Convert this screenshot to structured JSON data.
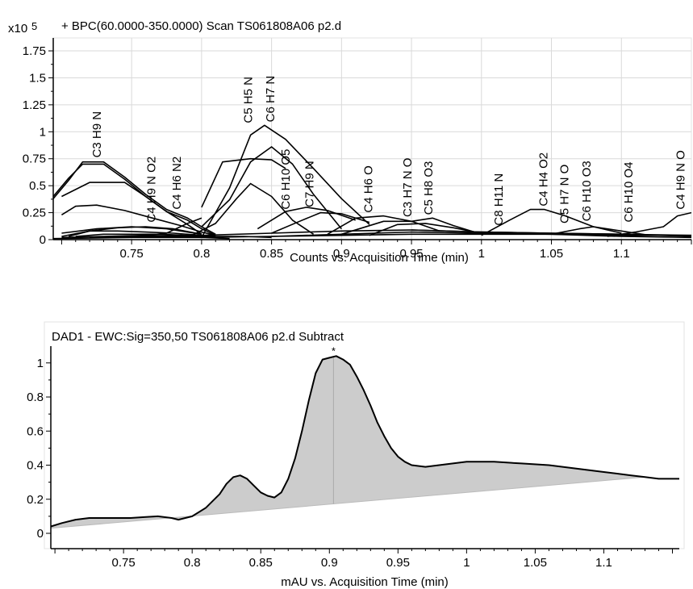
{
  "chart_data": [
    {
      "type": "line",
      "title": "+ BPC(60.0000-350.0000) Scan TS061808A06 p2.d",
      "multiplier": "x10",
      "multiplier_exp": "5",
      "xlabel": "Counts vs. Acquisition Time (min)",
      "xlim": [
        0.694,
        1.15
      ],
      "ylim": [
        0,
        1.87
      ],
      "xticks": [
        "0.75",
        "0.8",
        "0.85",
        "0.9",
        "0.95",
        "1",
        "1.05",
        "1.1"
      ],
      "xtick_values": [
        0.75,
        0.8,
        0.85,
        0.9,
        0.95,
        1.0,
        1.05,
        1.1
      ],
      "yticks": [
        "0",
        "0.25",
        "0.5",
        "0.75",
        "1",
        "1.25",
        "1.5",
        "1.75"
      ],
      "ytick_values": [
        0,
        0.25,
        0.5,
        0.75,
        1.0,
        1.25,
        1.5,
        1.75
      ],
      "grid": true,
      "series": [
        {
          "x": [
            0.694,
            0.705,
            0.715,
            0.73,
            0.745,
            0.76,
            0.775,
            0.79,
            0.8,
            0.81
          ],
          "y": [
            0.38,
            0.55,
            0.72,
            0.72,
            0.58,
            0.42,
            0.28,
            0.2,
            0.12,
            0.05
          ]
        },
        {
          "x": [
            0.694,
            0.705,
            0.715,
            0.73,
            0.745,
            0.76,
            0.775,
            0.79,
            0.8,
            0.81
          ],
          "y": [
            0.4,
            0.57,
            0.7,
            0.7,
            0.56,
            0.4,
            0.26,
            0.18,
            0.1,
            0.04
          ]
        },
        {
          "x": [
            0.7,
            0.72,
            0.74,
            0.76,
            0.78,
            0.8,
            0.81
          ],
          "y": [
            0.03,
            0.08,
            0.08,
            0.07,
            0.06,
            0.04,
            0.03
          ]
        },
        {
          "x": [
            0.7,
            0.71,
            0.725,
            0.745,
            0.765,
            0.785,
            0.8,
            0.81
          ],
          "y": [
            0.23,
            0.31,
            0.32,
            0.27,
            0.2,
            0.13,
            0.07,
            0.04
          ]
        },
        {
          "x": [
            0.71,
            0.73,
            0.75,
            0.77,
            0.79,
            0.81
          ],
          "y": [
            0.03,
            0.05,
            0.05,
            0.05,
            0.04,
            0.03
          ]
        },
        {
          "x": [
            0.7,
            0.73,
            0.76,
            0.8,
            0.83,
            0.85
          ],
          "y": [
            0.02,
            0.03,
            0.04,
            0.03,
            0.03,
            0.02
          ]
        },
        {
          "x": [
            0.72,
            0.75,
            0.78,
            0.8,
            0.82
          ],
          "y": [
            0.02,
            0.03,
            0.03,
            0.02,
            0.01
          ]
        },
        {
          "x": [
            0.705,
            0.72,
            0.74,
            0.76,
            0.78,
            0.8
          ],
          "y": [
            0.03,
            0.08,
            0.11,
            0.12,
            0.1,
            0.05
          ]
        },
        {
          "x": [
            0.7,
            0.725,
            0.75,
            0.775,
            0.8
          ],
          "y": [
            0.06,
            0.1,
            0.12,
            0.1,
            0.05
          ]
        },
        {
          "x": [
            0.7,
            0.72,
            0.745,
            0.76,
            0.775,
            0.79,
            0.8
          ],
          "y": [
            0.4,
            0.53,
            0.53,
            0.4,
            0.26,
            0.14,
            0.05
          ]
        },
        {
          "x": [
            0.73,
            0.76,
            0.775,
            0.79,
            0.8
          ],
          "y": [
            0.02,
            0.04,
            0.06,
            0.15,
            0.2
          ]
        },
        {
          "x": [
            0.8,
            0.82,
            0.835,
            0.845,
            0.86,
            0.88,
            0.9,
            0.92
          ],
          "y": [
            0.02,
            0.48,
            0.97,
            1.06,
            0.93,
            0.66,
            0.38,
            0.14
          ]
        },
        {
          "x": [
            0.8,
            0.82,
            0.835,
            0.85,
            0.865,
            0.88,
            0.9
          ],
          "y": [
            0.12,
            0.37,
            0.72,
            0.86,
            0.7,
            0.42,
            0.1
          ]
        },
        {
          "x": [
            0.8,
            0.815,
            0.835,
            0.85,
            0.86
          ],
          "y": [
            0.3,
            0.72,
            0.75,
            0.74,
            0.66
          ]
        },
        {
          "x": [
            0.79,
            0.81,
            0.825,
            0.835,
            0.85,
            0.865,
            0.88
          ],
          "y": [
            0.02,
            0.15,
            0.38,
            0.52,
            0.4,
            0.18,
            0.05
          ]
        },
        {
          "x": [
            0.84,
            0.86,
            0.875,
            0.89,
            0.91
          ],
          "y": [
            0.1,
            0.26,
            0.3,
            0.27,
            0.18
          ]
        },
        {
          "x": [
            0.85,
            0.87,
            0.885,
            0.9,
            0.92
          ],
          "y": [
            0.06,
            0.17,
            0.25,
            0.24,
            0.16
          ]
        },
        {
          "x": [
            0.89,
            0.91,
            0.93,
            0.95,
            0.97
          ],
          "y": [
            0.05,
            0.2,
            0.22,
            0.17,
            0.08
          ]
        },
        {
          "x": [
            0.9,
            0.93,
            0.95,
            0.965,
            0.98,
            1.0
          ],
          "y": [
            0.05,
            0.17,
            0.17,
            0.2,
            0.13,
            0.05
          ]
        },
        {
          "x": [
            0.92,
            0.94,
            0.96,
            0.98,
            1.0
          ],
          "y": [
            0.04,
            0.14,
            0.15,
            0.11,
            0.06
          ]
        },
        {
          "x": [
            1.0,
            1.02,
            1.035,
            1.045,
            1.06,
            1.08,
            1.1
          ],
          "y": [
            0.04,
            0.18,
            0.28,
            0.28,
            0.22,
            0.12,
            0.06
          ]
        },
        {
          "x": [
            1.05,
            1.07,
            1.08,
            1.1,
            1.12
          ],
          "y": [
            0.05,
            0.1,
            0.12,
            0.08,
            0.04
          ]
        },
        {
          "x": [
            1.09,
            1.11,
            1.13,
            1.14,
            1.15
          ],
          "y": [
            0.03,
            0.07,
            0.12,
            0.22,
            0.25
          ]
        },
        {
          "x": [
            0.694,
            0.75,
            0.8,
            0.85,
            0.9,
            0.95,
            1.0,
            1.05,
            1.1,
            1.15
          ],
          "y": [
            0.01,
            0.02,
            0.02,
            0.03,
            0.04,
            0.05,
            0.05,
            0.05,
            0.04,
            0.04
          ]
        },
        {
          "x": [
            0.8,
            0.85,
            0.9,
            0.95,
            1.0,
            1.05,
            1.1,
            1.15
          ],
          "y": [
            0.04,
            0.06,
            0.08,
            0.09,
            0.07,
            0.06,
            0.05,
            0.03
          ]
        },
        {
          "x": [
            0.85,
            0.9,
            0.95,
            1.0,
            1.05,
            1.1,
            1.15
          ],
          "y": [
            0.03,
            0.05,
            0.07,
            0.06,
            0.05,
            0.03,
            0.02
          ]
        },
        {
          "x": [
            0.95,
            1.0,
            1.05,
            1.1,
            1.15
          ],
          "y": [
            0.09,
            0.07,
            0.06,
            0.05,
            0.04
          ]
        }
      ],
      "annotations": [
        {
          "text": "C3 H9 N",
          "x": 0.728,
          "y": 0.73
        },
        {
          "text": "C4 H9 N O2",
          "x": 0.767,
          "y": 0.13
        },
        {
          "text": "C4 H6 N2",
          "x": 0.785,
          "y": 0.25
        },
        {
          "text": "C5 H5 N",
          "x": 0.836,
          "y": 1.05
        },
        {
          "text": "C6 H7 N",
          "x": 0.852,
          "y": 1.06
        },
        {
          "text": "C6 H10 O5",
          "x": 0.863,
          "y": 0.25
        },
        {
          "text": "C7 H9 N",
          "x": 0.88,
          "y": 0.27
        },
        {
          "text": "C4 H6 O",
          "x": 0.922,
          "y": 0.22
        },
        {
          "text": "C3 H7 N O",
          "x": 0.95,
          "y": 0.18
        },
        {
          "text": "C5 H8 O3",
          "x": 0.965,
          "y": 0.2
        },
        {
          "text": "C8 H11 N",
          "x": 1.015,
          "y": 0.1
        },
        {
          "text": "C4 H4 O2",
          "x": 1.047,
          "y": 0.28
        },
        {
          "text": "C5 H7 N O",
          "x": 1.062,
          "y": 0.12
        },
        {
          "text": "C6 H10 O3",
          "x": 1.078,
          "y": 0.14
        },
        {
          "text": "C6 H10 O4",
          "x": 1.108,
          "y": 0.13
        },
        {
          "text": "C4 H9 N O",
          "x": 1.145,
          "y": 0.25
        }
      ]
    },
    {
      "type": "area",
      "title": "DAD1 - EWC:Sig=350,50 TS061808A06 p2.d  Subtract",
      "xlabel": "mAU vs. Acquisition Time (min)",
      "xlim": [
        0.697,
        1.155
      ],
      "ylim": [
        -0.09,
        1.07
      ],
      "xticks": [
        "0.75",
        "0.8",
        "0.85",
        "0.9",
        "0.95",
        "1",
        "1.05",
        "1.1"
      ],
      "xtick_values": [
        0.75,
        0.8,
        0.85,
        0.9,
        0.95,
        1.0,
        1.05,
        1.1
      ],
      "yticks": [
        "0",
        "0.2",
        "0.4",
        "0.6",
        "0.8",
        "1"
      ],
      "ytick_values": [
        0,
        0.2,
        0.4,
        0.6,
        0.8,
        1.0
      ],
      "grid": false,
      "peak_marker": "*",
      "peak_marker_x": 0.903,
      "peak_marker_y": 1.04,
      "series": [
        {
          "x": [
            0.697,
            0.705,
            0.715,
            0.725,
            0.735,
            0.745,
            0.755,
            0.765,
            0.775,
            0.785,
            0.79,
            0.8,
            0.81,
            0.82,
            0.825,
            0.83,
            0.835,
            0.84,
            0.845,
            0.85,
            0.855,
            0.86,
            0.865,
            0.87,
            0.875,
            0.88,
            0.885,
            0.89,
            0.895,
            0.9,
            0.905,
            0.91,
            0.915,
            0.92,
            0.925,
            0.93,
            0.935,
            0.94,
            0.945,
            0.95,
            0.955,
            0.96,
            0.97,
            0.98,
            0.99,
            1.0,
            1.02,
            1.04,
            1.06,
            1.08,
            1.1,
            1.12,
            1.13,
            1.14,
            1.155
          ],
          "y": [
            0.04,
            0.06,
            0.08,
            0.09,
            0.09,
            0.09,
            0.09,
            0.095,
            0.1,
            0.09,
            0.08,
            0.1,
            0.15,
            0.23,
            0.29,
            0.33,
            0.34,
            0.32,
            0.28,
            0.24,
            0.22,
            0.21,
            0.24,
            0.32,
            0.44,
            0.6,
            0.78,
            0.94,
            1.02,
            1.03,
            1.04,
            1.02,
            0.99,
            0.92,
            0.84,
            0.75,
            0.65,
            0.57,
            0.5,
            0.45,
            0.42,
            0.4,
            0.39,
            0.4,
            0.41,
            0.42,
            0.42,
            0.41,
            0.4,
            0.38,
            0.36,
            0.34,
            0.33,
            0.32,
            0.32
          ]
        }
      ],
      "baseline": {
        "x": [
          0.697,
          1.13
        ],
        "y": [
          0.03,
          0.33
        ]
      }
    }
  ]
}
